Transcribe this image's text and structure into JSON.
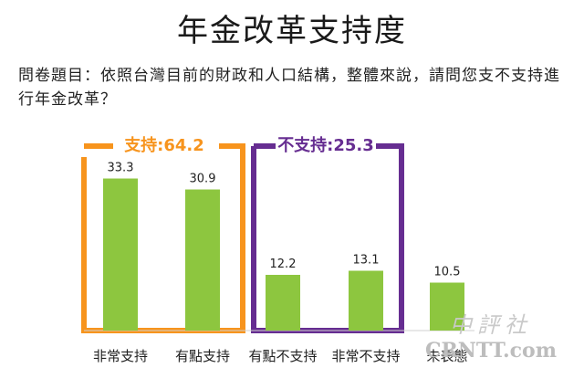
{
  "title": "年金改革支持度",
  "question": "問卷題目：依照台灣目前的財政和人口結構，整體來說，請問您支不支持進行年金改革？",
  "groups": {
    "support": {
      "label": "支持:64.2",
      "color": "#f7941d"
    },
    "oppose": {
      "label": "不支持:25.3",
      "color": "#662d91"
    }
  },
  "watermark": {
    "cn": "中評社",
    "en": "CRNTT.com"
  },
  "chart_data": {
    "type": "bar",
    "title": "年金改革支持度",
    "categories": [
      "非常支持",
      "有點支持",
      "有點不支持",
      "非常不支持",
      "未表態"
    ],
    "values": [
      33.3,
      30.9,
      12.2,
      13.1,
      10.5
    ],
    "value_labels": [
      "33.3",
      "30.9",
      "12.2",
      "13.1",
      "10.5"
    ],
    "bar_color": "#8dc63f",
    "ylim": [
      0,
      40
    ],
    "grid": false,
    "xlabel": "",
    "ylabel": ""
  }
}
